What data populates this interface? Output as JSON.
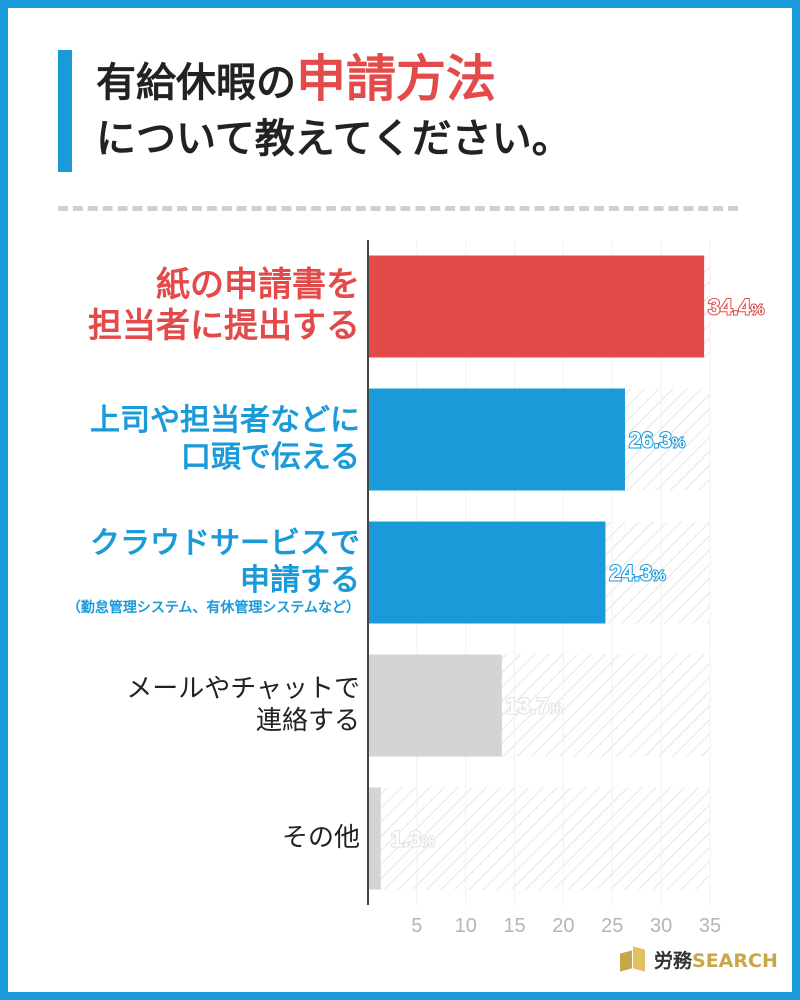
{
  "title": {
    "line1_prefix": "有給休暇の",
    "line1_highlight": "申請方法",
    "line2": "について教えてください。"
  },
  "colors": {
    "accent_blue": "#1a9ad9",
    "accent_red": "#e34b4b",
    "gray_bar": "#d4d4d4",
    "tick_gray": "#b5b5b5"
  },
  "chart_data": {
    "type": "bar",
    "orientation": "horizontal",
    "title": "有給休暇の申請方法について教えてください。",
    "unit": "%",
    "xlim": [
      0,
      35
    ],
    "xticks": [
      5,
      10,
      15,
      20,
      25,
      30,
      35
    ],
    "categories": [
      {
        "label_lines": [
          "紙の申請書を",
          "担当者に提出する"
        ],
        "sub": "",
        "value": 34.4,
        "display": "34.4",
        "color": "#e34b4b",
        "label_color": "#e34b4b"
      },
      {
        "label_lines": [
          "上司や担当者などに",
          "口頭で伝える"
        ],
        "sub": "",
        "value": 26.3,
        "display": "26.3",
        "color": "#1a9ad9",
        "label_color": "#1a9ad9"
      },
      {
        "label_lines": [
          "クラウドサービスで",
          "申請する"
        ],
        "sub": "（勤怠管理システム、有休管理システムなど）",
        "value": 24.3,
        "display": "24.3",
        "color": "#1a9ad9",
        "label_color": "#1a9ad9"
      },
      {
        "label_lines": [
          "メールやチャットで",
          "連絡する"
        ],
        "sub": "",
        "value": 13.7,
        "display": "13.7",
        "color": "#d4d4d4",
        "label_color": "#222222"
      },
      {
        "label_lines": [
          "その他"
        ],
        "sub": "",
        "value": 1.3,
        "display": "1.3",
        "color": "#d4d4d4",
        "label_color": "#222222"
      }
    ]
  },
  "logo": {
    "jp": "労務",
    "en": "SEARCH"
  }
}
